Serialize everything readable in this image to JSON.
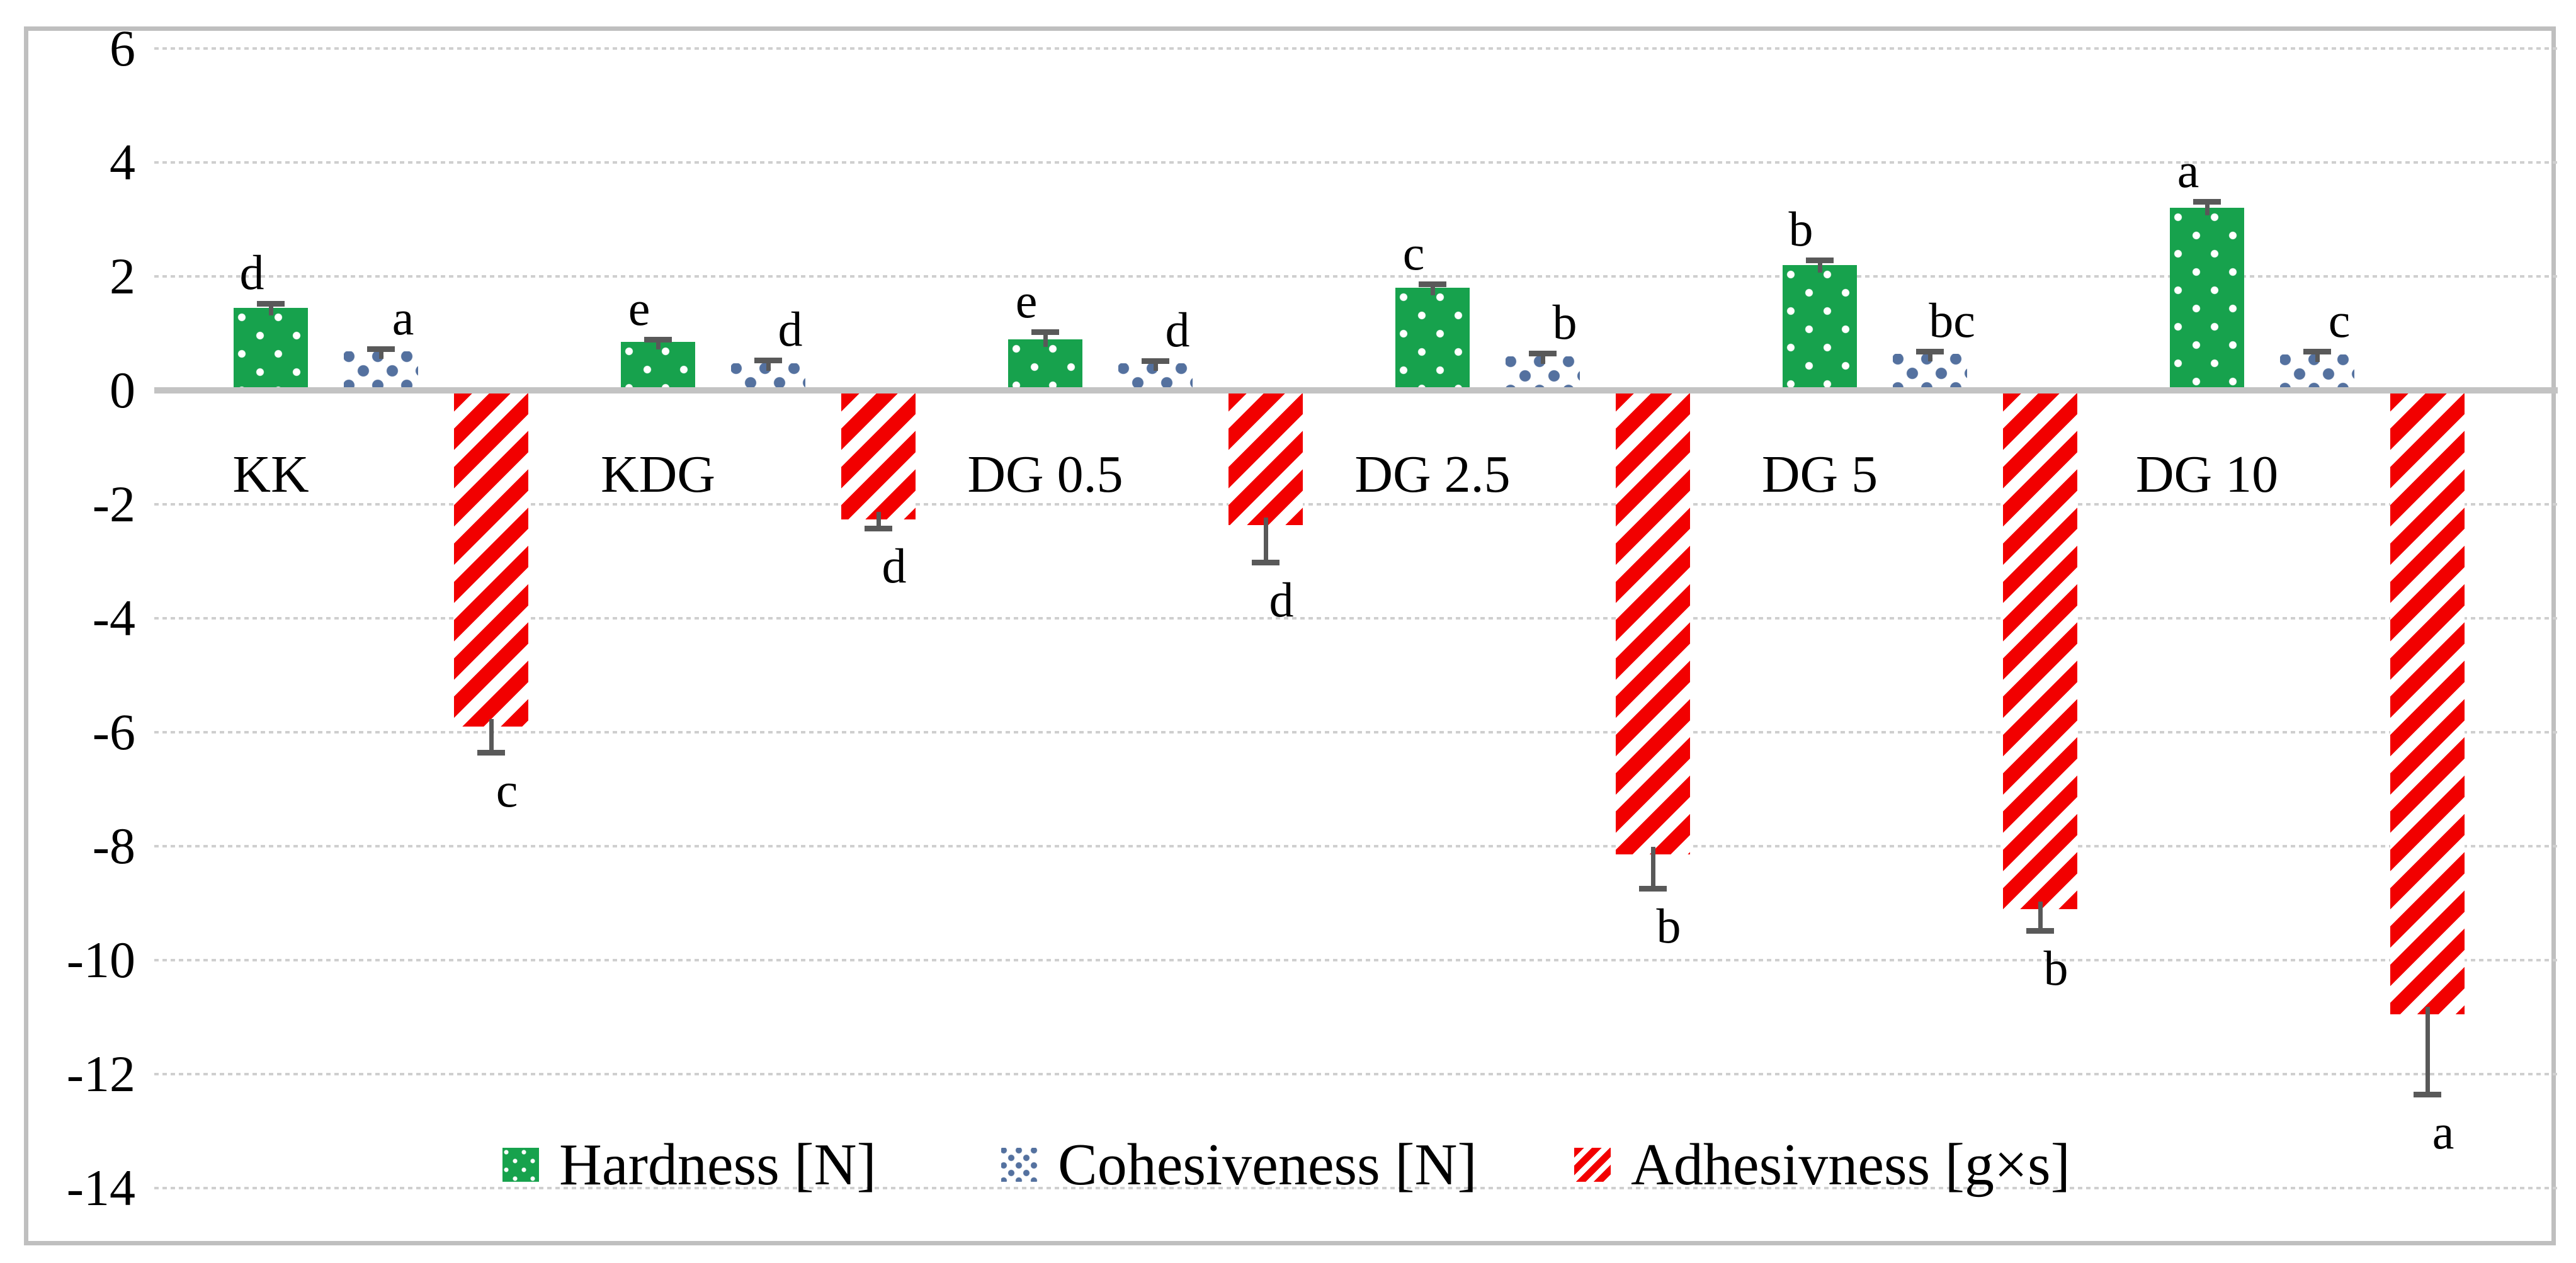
{
  "chart_data": {
    "type": "bar",
    "title": "",
    "xlabel": "",
    "ylabel": "",
    "categories": [
      "KK",
      "KDG",
      "DG 0.5",
      "DG 2.5",
      "DG 5",
      "DG 10"
    ],
    "series": [
      {
        "name": "Hardness [N]",
        "color": "#17a24d",
        "pattern": "white-dots-on-green",
        "values": [
          1.45,
          0.85,
          0.9,
          1.8,
          2.2,
          3.2
        ],
        "errors": [
          0.07,
          0.05,
          0.13,
          0.07,
          0.09,
          0.12
        ],
        "sig_letters": [
          "d",
          "e",
          "e",
          "c",
          "b",
          "a"
        ]
      },
      {
        "name": "Cohesiveness [N]",
        "color": "#54719f",
        "pattern": "blue-squares-on-white",
        "values": [
          0.68,
          0.48,
          0.47,
          0.6,
          0.64,
          0.63
        ],
        "errors": [
          0.05,
          0.05,
          0.05,
          0.05,
          0.05,
          0.05
        ],
        "sig_letters": [
          "a",
          "d",
          "d",
          "b",
          "bc",
          "c"
        ]
      },
      {
        "name": "Adhesivness [g×s]",
        "color": "#f20000",
        "pattern": "red-diagonal-stripes-on-white",
        "values": [
          -5.9,
          -2.27,
          -2.36,
          -8.14,
          -9.1,
          -10.95
        ],
        "errors": [
          0.45,
          0.15,
          0.66,
          0.6,
          0.38,
          1.4
        ],
        "sig_letters": [
          "c",
          "d",
          "d",
          "b",
          "b",
          "a"
        ]
      }
    ],
    "y_axis": {
      "min": -14,
      "max": 6,
      "tick_step": 2,
      "tick_labels": [
        "6",
        "4",
        "2",
        "0",
        "-2",
        "-4",
        "-6",
        "-8",
        "-10",
        "-12",
        "-14"
      ]
    },
    "grid": "horizontal-dotted",
    "legend_position": "bottom-inside",
    "colors": {
      "error_bar": "#595959",
      "gridline": "#cfcfcf",
      "axis_line": "#c3c3c3",
      "border": "#bfbfbf",
      "text": "#000000",
      "background": "#ffffff"
    }
  }
}
